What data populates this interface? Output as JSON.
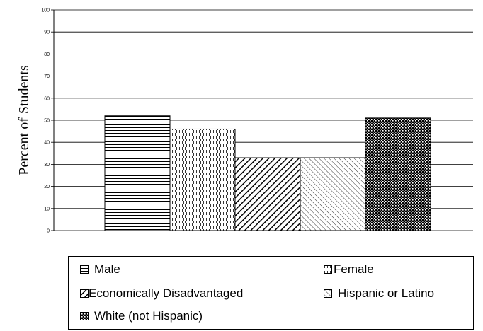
{
  "chart_data": {
    "type": "bar",
    "title": "",
    "xlabel": "",
    "ylabel": "Percent of Students",
    "ylim": [
      0,
      100
    ],
    "yticks": [
      0,
      10,
      20,
      30,
      40,
      50,
      60,
      70,
      80,
      90,
      100
    ],
    "grid": true,
    "legend_position": "bottom",
    "series": [
      {
        "name": "Male",
        "values": [
          52
        ],
        "pattern": "horizontal-lines"
      },
      {
        "name": "Female",
        "values": [
          46
        ],
        "pattern": "vertical-dashes"
      },
      {
        "name": "Economically Disadvantaged",
        "values": [
          33
        ],
        "pattern": "diagonal-stripes"
      },
      {
        "name": "Hispanic or Latino",
        "values": [
          33
        ],
        "pattern": "light-diagonal"
      },
      {
        "name": "White (not Hispanic)",
        "values": [
          51
        ],
        "pattern": "checker"
      }
    ]
  }
}
